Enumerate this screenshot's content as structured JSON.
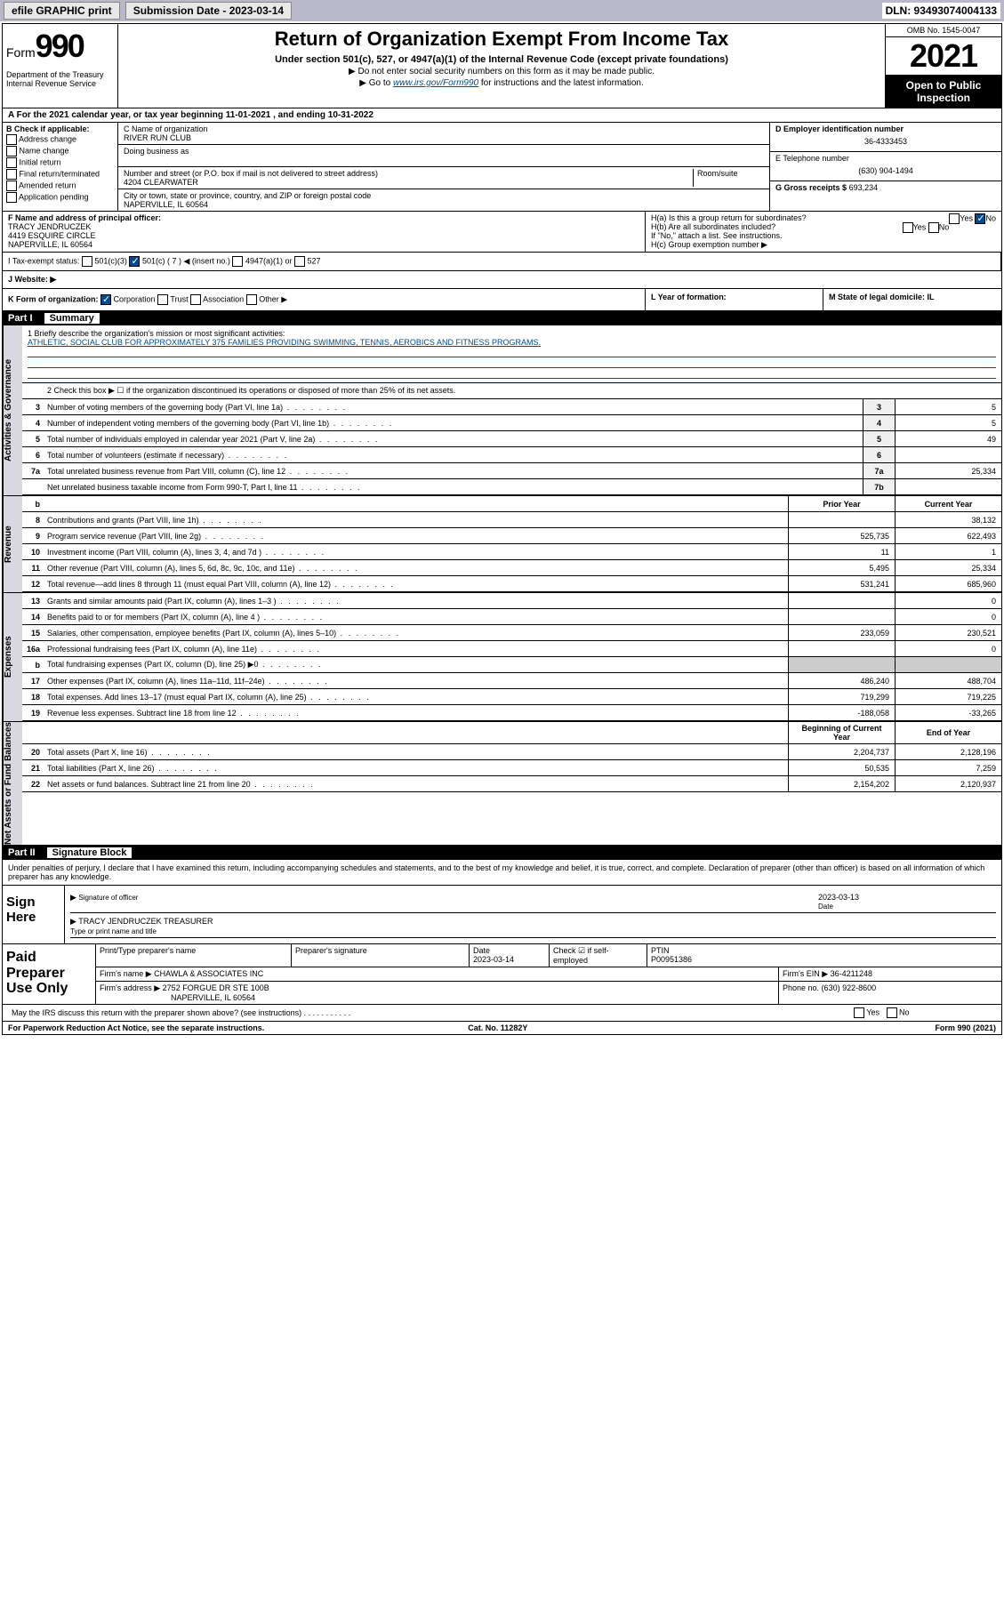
{
  "topbar": {
    "efile": "efile GRAPHIC print",
    "submission_label": "Submission Date - 2023-03-14",
    "dln": "DLN: 93493074004133"
  },
  "header": {
    "form_prefix": "Form",
    "form_number": "990",
    "dept": "Department of the Treasury\nInternal Revenue Service",
    "title": "Return of Organization Exempt From Income Tax",
    "subtitle": "Under section 501(c), 527, or 4947(a)(1) of the Internal Revenue Code (except private foundations)",
    "note1": "▶ Do not enter social security numbers on this form as it may be made public.",
    "note2_pre": "▶ Go to ",
    "note2_link": "www.irs.gov/Form990",
    "note2_post": " for instructions and the latest information.",
    "omb": "OMB No. 1545-0047",
    "year": "2021",
    "open": "Open to Public Inspection"
  },
  "rowA": "A For the 2021 calendar year, or tax year beginning 11-01-2021    , and ending 10-31-2022",
  "colB": {
    "hdr": "B Check if applicable:",
    "items": [
      "Address change",
      "Name change",
      "Initial return",
      "Final return/terminated",
      "Amended return",
      "Application pending"
    ]
  },
  "colC": {
    "name_lbl": "C Name of organization",
    "name": "RIVER RUN CLUB",
    "dba_lbl": "Doing business as",
    "addr_lbl": "Number and street (or P.O. box if mail is not delivered to street address)",
    "room_lbl": "Room/suite",
    "addr": "4204 CLEARWATER",
    "city_lbl": "City or town, state or province, country, and ZIP or foreign postal code",
    "city": "NAPERVILLE, IL  60564"
  },
  "colDE": {
    "ein_lbl": "D Employer identification number",
    "ein": "36-4333453",
    "tel_lbl": "E Telephone number",
    "tel": "(630) 904-1494",
    "gross_lbl": "G Gross receipts $",
    "gross": "693,234"
  },
  "rowF": {
    "f_lbl": "F Name and address of principal officer:",
    "f_name": "TRACY JENDRUCZEK",
    "f_addr1": "4419 ESQUIRE CIRCLE",
    "f_addr2": "NAPERVILLE, IL  60564",
    "ha": "H(a)  Is this a group return for subordinates?",
    "ha_yes": "Yes",
    "ha_no": "No",
    "hb": "H(b)  Are all subordinates included?",
    "hb_note": "If \"No,\" attach a list. See instructions.",
    "hc": "H(c)  Group exemption number ▶"
  },
  "rowI": {
    "lbl": "I   Tax-exempt status:",
    "c3": "501(c)(3)",
    "c7": "501(c) ( 7 ) ◀ (insert no.)",
    "a1": "4947(a)(1) or",
    "s527": "527"
  },
  "rowJ": {
    "lbl": "J   Website: ▶"
  },
  "rowK": {
    "k": "K Form of organization:",
    "corp": "Corporation",
    "trust": "Trust",
    "assoc": "Association",
    "other": "Other ▶",
    "l": "L Year of formation:",
    "m": "M State of legal domicile: IL"
  },
  "part1": {
    "num": "Part I",
    "title": "Summary"
  },
  "sidebars": {
    "s1": "Activities & Governance",
    "s2": "Revenue",
    "s3": "Expenses",
    "s4": "Net Assets or Fund Balances"
  },
  "mission": {
    "lbl": "1   Briefly describe the organization's mission or most significant activities:",
    "txt": "ATHLETIC, SOCIAL CLUB FOR APPROXIMATELY 375 FAMILIES PROVIDING SWIMMING, TENNIS, AEROBICS AND FITNESS PROGRAMS."
  },
  "line2": "2    Check this box ▶ ☐  if the organization discontinued its operations or disposed of more than 25% of its net assets.",
  "governance_lines": [
    {
      "n": "3",
      "d": "Number of voting members of the governing body (Part VI, line 1a)",
      "box": "3",
      "v": "5"
    },
    {
      "n": "4",
      "d": "Number of independent voting members of the governing body (Part VI, line 1b)",
      "box": "4",
      "v": "5"
    },
    {
      "n": "5",
      "d": "Total number of individuals employed in calendar year 2021 (Part V, line 2a)",
      "box": "5",
      "v": "49"
    },
    {
      "n": "6",
      "d": "Total number of volunteers (estimate if necessary)",
      "box": "6",
      "v": ""
    },
    {
      "n": "7a",
      "d": "Total unrelated business revenue from Part VIII, column (C), line 12",
      "box": "7a",
      "v": "25,334"
    },
    {
      "n": "",
      "d": "Net unrelated business taxable income from Form 990-T, Part I, line 11",
      "box": "7b",
      "v": ""
    }
  ],
  "col_hdr": {
    "n": "b",
    "prior": "Prior Year",
    "current": "Current Year"
  },
  "revenue_lines": [
    {
      "n": "8",
      "d": "Contributions and grants (Part VIII, line 1h)",
      "p": "",
      "c": "38,132"
    },
    {
      "n": "9",
      "d": "Program service revenue (Part VIII, line 2g)",
      "p": "525,735",
      "c": "622,493"
    },
    {
      "n": "10",
      "d": "Investment income (Part VIII, column (A), lines 3, 4, and 7d )",
      "p": "11",
      "c": "1"
    },
    {
      "n": "11",
      "d": "Other revenue (Part VIII, column (A), lines 5, 6d, 8c, 9c, 10c, and 11e)",
      "p": "5,495",
      "c": "25,334"
    },
    {
      "n": "12",
      "d": "Total revenue—add lines 8 through 11 (must equal Part VIII, column (A), line 12)",
      "p": "531,241",
      "c": "685,960"
    }
  ],
  "expense_lines": [
    {
      "n": "13",
      "d": "Grants and similar amounts paid (Part IX, column (A), lines 1–3 )",
      "p": "",
      "c": "0"
    },
    {
      "n": "14",
      "d": "Benefits paid to or for members (Part IX, column (A), line 4 )",
      "p": "",
      "c": "0"
    },
    {
      "n": "15",
      "d": "Salaries, other compensation, employee benefits (Part IX, column (A), lines 5–10)",
      "p": "233,059",
      "c": "230,521"
    },
    {
      "n": "16a",
      "d": "Professional fundraising fees (Part IX, column (A), line 11e)",
      "p": "",
      "c": "0"
    },
    {
      "n": "b",
      "d": "Total fundraising expenses (Part IX, column (D), line 25) ▶0",
      "p": "—",
      "c": "—"
    },
    {
      "n": "17",
      "d": "Other expenses (Part IX, column (A), lines 11a–11d, 11f–24e)",
      "p": "486,240",
      "c": "488,704"
    },
    {
      "n": "18",
      "d": "Total expenses. Add lines 13–17 (must equal Part IX, column (A), line 25)",
      "p": "719,299",
      "c": "719,225"
    },
    {
      "n": "19",
      "d": "Revenue less expenses. Subtract line 18 from line 12",
      "p": "-188,058",
      "c": "-33,265"
    }
  ],
  "net_hdr": {
    "beg": "Beginning of Current Year",
    "end": "End of Year"
  },
  "net_lines": [
    {
      "n": "20",
      "d": "Total assets (Part X, line 16)",
      "p": "2,204,737",
      "c": "2,128,196"
    },
    {
      "n": "21",
      "d": "Total liabilities (Part X, line 26)",
      "p": "50,535",
      "c": "7,259"
    },
    {
      "n": "22",
      "d": "Net assets or fund balances. Subtract line 21 from line 20",
      "p": "2,154,202",
      "c": "2,120,937"
    }
  ],
  "part2": {
    "num": "Part II",
    "title": "Signature Block"
  },
  "sig_para": "Under penalties of perjury, I declare that I have examined this return, including accompanying schedules and statements, and to the best of my knowledge and belief, it is true, correct, and complete. Declaration of preparer (other than officer) is based on all information of which preparer has any knowledge.",
  "sign": {
    "lbl": "Sign Here",
    "sig_of": "Signature of officer",
    "date_lbl": "Date",
    "date": "2023-03-13",
    "name_line": "TRACY JENDRUCZEK  TREASURER",
    "type_lbl": "Type or print name and title"
  },
  "paid": {
    "lbl": "Paid Preparer Use Only",
    "h1": "Print/Type preparer's name",
    "h2": "Preparer's signature",
    "h3": "Date",
    "h3v": "2023-03-14",
    "h4": "Check ☑ if self-employed",
    "h5": "PTIN",
    "h5v": "P00951386",
    "firm_name_lbl": "Firm's name    ▶",
    "firm_name": "CHAWLA & ASSOCIATES INC",
    "firm_ein_lbl": "Firm's EIN ▶",
    "firm_ein": "36-4211248",
    "firm_addr_lbl": "Firm's address ▶",
    "firm_addr1": "2752 FORGUE DR STE 100B",
    "firm_addr2": "NAPERVILLE, IL  60564",
    "phone_lbl": "Phone no.",
    "phone": "(630) 922-8600"
  },
  "may_discuss": "May the IRS discuss this return with the preparer shown above? (see instructions)",
  "footer": {
    "pra": "For Paperwork Reduction Act Notice, see the separate instructions.",
    "cat": "Cat. No. 11282Y",
    "form": "Form 990 (2021)"
  }
}
